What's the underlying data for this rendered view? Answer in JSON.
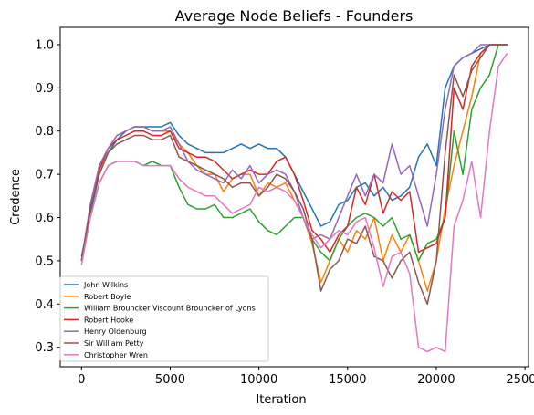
{
  "chart_data": {
    "type": "line",
    "title": "Average Node Beliefs - Founders",
    "xlabel": "Iteration",
    "ylabel": "Credence",
    "xlim": [
      -1200,
      25200
    ],
    "ylim": [
      0.255,
      1.04
    ],
    "xticks": [
      0,
      5000,
      10000,
      15000,
      20000,
      25000
    ],
    "yticks": [
      0.3,
      0.4,
      0.5,
      0.6,
      0.7,
      0.8,
      0.9,
      1.0
    ],
    "xtick_labels": [
      "0",
      "5000",
      "10000",
      "15000",
      "20000",
      "25000"
    ],
    "ytick_labels": [
      "0.3",
      "0.4",
      "0.5",
      "0.6",
      "0.7",
      "0.8",
      "0.9",
      "1.0"
    ],
    "grid": false,
    "legend_position": "lower-left",
    "series": [
      {
        "name": "John Wilkins",
        "color": "#1f77b4",
        "x": [
          0,
          500,
          1000,
          1500,
          2000,
          2500,
          3000,
          3500,
          4000,
          4500,
          5000,
          5500,
          6000,
          6500,
          7000,
          7500,
          8000,
          8500,
          9000,
          9500,
          10000,
          10500,
          11000,
          11500,
          12000,
          12500,
          13000,
          13500,
          14000,
          14500,
          15000,
          15500,
          16000,
          16500,
          17000,
          17500,
          18000,
          18500,
          19000,
          19500,
          20000,
          20500,
          21000,
          21500,
          22000,
          22500,
          23000,
          23500,
          24000
        ],
        "y": [
          0.51,
          0.61,
          0.7,
          0.75,
          0.78,
          0.8,
          0.81,
          0.81,
          0.81,
          0.81,
          0.82,
          0.79,
          0.77,
          0.76,
          0.75,
          0.75,
          0.75,
          0.76,
          0.77,
          0.76,
          0.77,
          0.76,
          0.76,
          0.74,
          0.7,
          0.66,
          0.62,
          0.58,
          0.59,
          0.63,
          0.64,
          0.67,
          0.68,
          0.65,
          0.67,
          0.64,
          0.65,
          0.67,
          0.74,
          0.77,
          0.72,
          0.9,
          0.95,
          0.97,
          0.98,
          0.99,
          1.0,
          1.0,
          1.0
        ]
      },
      {
        "name": "Robert Boyle",
        "color": "#ff7f0e",
        "x": [
          0,
          500,
          1000,
          1500,
          2000,
          2500,
          3000,
          3500,
          4000,
          4500,
          5000,
          5500,
          6000,
          6500,
          7000,
          7500,
          8000,
          8500,
          9000,
          9500,
          10000,
          10500,
          11000,
          11500,
          12000,
          12500,
          13000,
          13500,
          14000,
          14500,
          15000,
          15500,
          16000,
          16500,
          17000,
          17500,
          18000,
          18500,
          19000,
          19500,
          20000,
          20500,
          21000,
          21500,
          22000,
          22500,
          23000,
          23500,
          24000
        ],
        "y": [
          0.5,
          0.63,
          0.72,
          0.76,
          0.79,
          0.8,
          0.81,
          0.81,
          0.8,
          0.8,
          0.8,
          0.77,
          0.75,
          0.72,
          0.7,
          0.7,
          0.66,
          0.69,
          0.7,
          0.7,
          0.65,
          0.68,
          0.67,
          0.68,
          0.64,
          0.6,
          0.54,
          0.45,
          0.5,
          0.55,
          0.52,
          0.57,
          0.55,
          0.6,
          0.5,
          0.56,
          0.52,
          0.56,
          0.5,
          0.43,
          0.5,
          0.62,
          0.72,
          0.8,
          0.88,
          0.98,
          1.0,
          1.0,
          1.0
        ]
      },
      {
        "name": "William Brouncker Viscount Brouncker of Lyons",
        "color": "#2ca02c",
        "x": [
          0,
          500,
          1000,
          1500,
          2000,
          2500,
          3000,
          3500,
          4000,
          4500,
          5000,
          5500,
          6000,
          6500,
          7000,
          7500,
          8000,
          8500,
          9000,
          9500,
          10000,
          10500,
          11000,
          11500,
          12000,
          12500,
          13000,
          13500,
          14000,
          14500,
          15000,
          15500,
          16000,
          16500,
          17000,
          17500,
          18000,
          18500,
          19000,
          19500,
          20000,
          20500,
          21000,
          21500,
          22000,
          22500,
          23000,
          23500,
          24000
        ],
        "y": [
          0.5,
          0.6,
          0.68,
          0.72,
          0.73,
          0.73,
          0.73,
          0.72,
          0.73,
          0.72,
          0.72,
          0.67,
          0.63,
          0.62,
          0.62,
          0.63,
          0.6,
          0.6,
          0.61,
          0.62,
          0.59,
          0.57,
          0.56,
          0.58,
          0.6,
          0.6,
          0.55,
          0.52,
          0.5,
          0.55,
          0.58,
          0.6,
          0.61,
          0.6,
          0.58,
          0.6,
          0.55,
          0.56,
          0.5,
          0.54,
          0.55,
          0.6,
          0.8,
          0.7,
          0.85,
          0.9,
          0.93,
          1.0,
          1.0
        ]
      },
      {
        "name": "Robert Hooke",
        "color": "#d62728",
        "x": [
          0,
          500,
          1000,
          1500,
          2000,
          2500,
          3000,
          3500,
          4000,
          4500,
          5000,
          5500,
          6000,
          6500,
          7000,
          7500,
          8000,
          8500,
          9000,
          9500,
          10000,
          10500,
          11000,
          11500,
          12000,
          12500,
          13000,
          13500,
          14000,
          14500,
          15000,
          15500,
          16000,
          16500,
          17000,
          17500,
          18000,
          18500,
          19000,
          19500,
          20000,
          20500,
          21000,
          21500,
          22000,
          22500,
          23000,
          23500,
          24000
        ],
        "y": [
          0.5,
          0.62,
          0.71,
          0.76,
          0.78,
          0.79,
          0.8,
          0.8,
          0.79,
          0.79,
          0.8,
          0.76,
          0.75,
          0.74,
          0.74,
          0.73,
          0.71,
          0.69,
          0.7,
          0.71,
          0.7,
          0.7,
          0.73,
          0.74,
          0.7,
          0.64,
          0.57,
          0.55,
          0.52,
          0.56,
          0.58,
          0.67,
          0.63,
          0.7,
          0.61,
          0.66,
          0.64,
          0.66,
          0.52,
          0.53,
          0.54,
          0.6,
          0.9,
          0.85,
          0.95,
          0.98,
          1.0,
          1.0,
          1.0
        ]
      },
      {
        "name": "Henry Oldenburg",
        "color": "#9467bd",
        "x": [
          0,
          500,
          1000,
          1500,
          2000,
          2500,
          3000,
          3500,
          4000,
          4500,
          5000,
          5500,
          6000,
          6500,
          7000,
          7500,
          8000,
          8500,
          9000,
          9500,
          10000,
          10500,
          11000,
          11500,
          12000,
          12500,
          13000,
          13500,
          14000,
          14500,
          15000,
          15500,
          16000,
          16500,
          17000,
          17500,
          18000,
          18500,
          19000,
          19500,
          20000,
          20500,
          21000,
          21500,
          22000,
          22500,
          23000,
          23500,
          24000
        ],
        "y": [
          0.5,
          0.63,
          0.72,
          0.76,
          0.79,
          0.8,
          0.81,
          0.81,
          0.8,
          0.8,
          0.81,
          0.77,
          0.73,
          0.71,
          0.7,
          0.69,
          0.68,
          0.71,
          0.69,
          0.72,
          0.68,
          0.7,
          0.71,
          0.7,
          0.66,
          0.6,
          0.55,
          0.56,
          0.55,
          0.6,
          0.65,
          0.7,
          0.65,
          0.7,
          0.68,
          0.77,
          0.7,
          0.72,
          0.65,
          0.58,
          0.7,
          0.85,
          0.95,
          0.97,
          0.98,
          1.0,
          1.0,
          1.0,
          1.0
        ]
      },
      {
        "name": "Sir William Petty",
        "color": "#8c564b",
        "x": [
          0,
          500,
          1000,
          1500,
          2000,
          2500,
          3000,
          3500,
          4000,
          4500,
          5000,
          5500,
          6000,
          6500,
          7000,
          7500,
          8000,
          8500,
          9000,
          9500,
          10000,
          10500,
          11000,
          11500,
          12000,
          12500,
          13000,
          13500,
          14000,
          14500,
          15000,
          15500,
          16000,
          16500,
          17000,
          17500,
          18000,
          18500,
          19000,
          19500,
          20000,
          20500,
          21000,
          21500,
          22000,
          22500,
          23000,
          23500,
          24000
        ],
        "y": [
          0.5,
          0.62,
          0.7,
          0.75,
          0.77,
          0.78,
          0.79,
          0.79,
          0.78,
          0.78,
          0.79,
          0.74,
          0.73,
          0.72,
          0.71,
          0.7,
          0.69,
          0.67,
          0.68,
          0.68,
          0.65,
          0.67,
          0.7,
          0.69,
          0.66,
          0.62,
          0.55,
          0.43,
          0.48,
          0.5,
          0.55,
          0.54,
          0.58,
          0.51,
          0.5,
          0.46,
          0.5,
          0.52,
          0.45,
          0.4,
          0.5,
          0.75,
          0.93,
          0.88,
          0.94,
          0.97,
          1.0,
          1.0,
          1.0
        ]
      },
      {
        "name": "Christopher Wren",
        "color": "#e377c2",
        "x": [
          0,
          500,
          1000,
          1500,
          2000,
          2500,
          3000,
          3500,
          4000,
          4500,
          5000,
          5500,
          6000,
          6500,
          7000,
          7500,
          8000,
          8500,
          9000,
          9500,
          10000,
          10500,
          11000,
          11500,
          12000,
          12500,
          13000,
          13500,
          14000,
          14500,
          15000,
          15500,
          16000,
          16500,
          17000,
          17500,
          18000,
          18500,
          19000,
          19500,
          20000,
          20500,
          21000,
          21500,
          22000,
          22500,
          23000,
          23500,
          24000
        ],
        "y": [
          0.49,
          0.6,
          0.68,
          0.72,
          0.73,
          0.73,
          0.73,
          0.72,
          0.72,
          0.72,
          0.72,
          0.69,
          0.67,
          0.66,
          0.65,
          0.65,
          0.63,
          0.61,
          0.62,
          0.63,
          0.67,
          0.66,
          0.67,
          0.66,
          0.64,
          0.6,
          0.56,
          0.53,
          0.55,
          0.57,
          0.56,
          0.59,
          0.6,
          0.53,
          0.44,
          0.51,
          0.52,
          0.47,
          0.3,
          0.29,
          0.3,
          0.29,
          0.58,
          0.64,
          0.73,
          0.6,
          0.8,
          0.95,
          0.98
        ]
      }
    ]
  }
}
